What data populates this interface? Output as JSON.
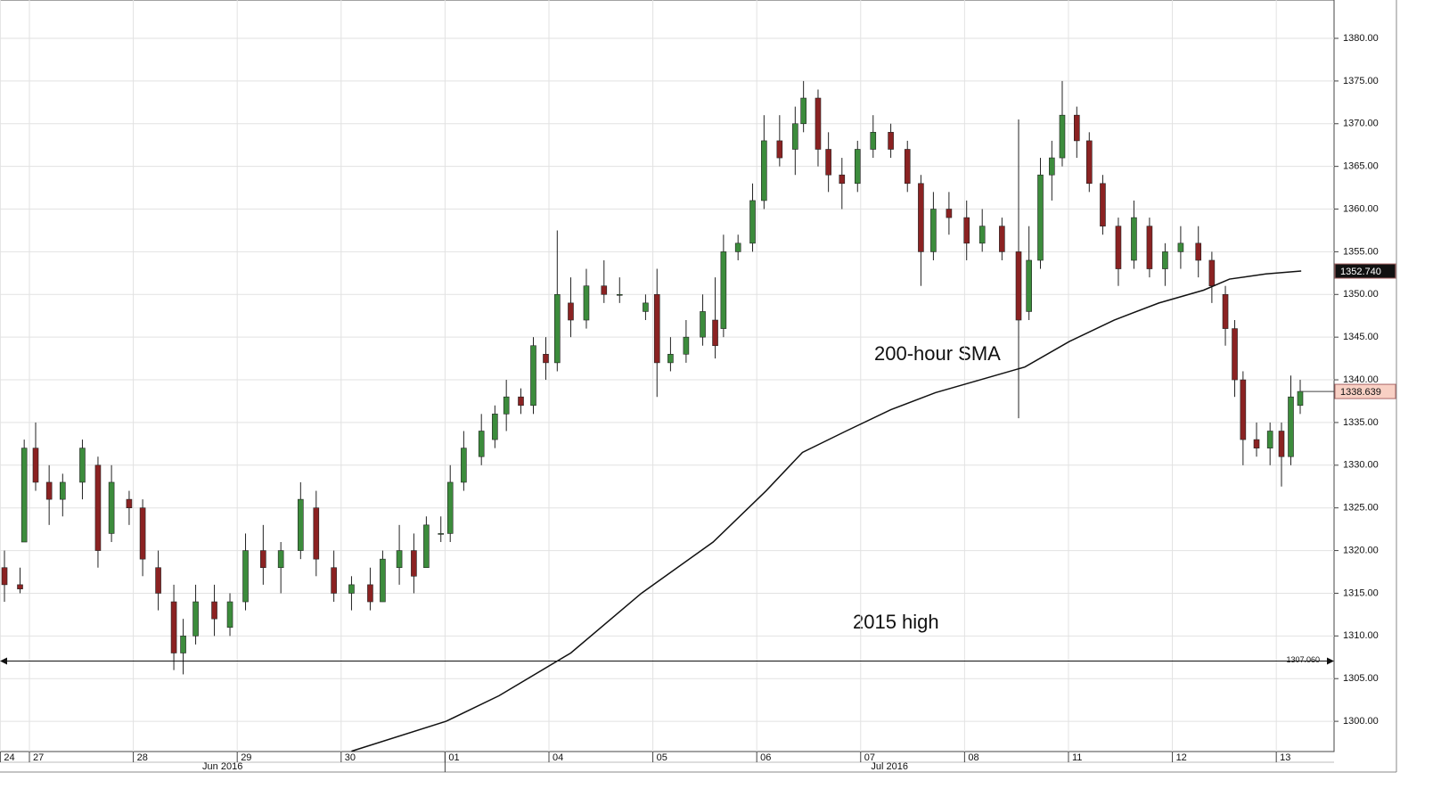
{
  "chart_data": {
    "type": "candlestick",
    "xlim": [
      -0.283,
      12.556
    ],
    "ylim": [
      1296.46,
      1384.49
    ],
    "grid": true,
    "xticks": [
      {
        "value": -0.28,
        "label": "24"
      },
      {
        "value": 0,
        "label": "27"
      },
      {
        "value": 1,
        "label": "28"
      },
      {
        "value": 2,
        "label": "29"
      },
      {
        "value": 3,
        "label": "30"
      },
      {
        "value": 4,
        "label": "01"
      },
      {
        "value": 5,
        "label": "04"
      },
      {
        "value": 6,
        "label": "05"
      },
      {
        "value": 7,
        "label": "06"
      },
      {
        "value": 8,
        "label": "07"
      },
      {
        "value": 9,
        "label": "08"
      },
      {
        "value": 10,
        "label": "11"
      },
      {
        "value": 11,
        "label": "12"
      },
      {
        "value": 12,
        "label": "13"
      }
    ],
    "months": [
      "Jun 2016",
      "Jul 2016"
    ],
    "yticks": [
      {
        "value": 1300,
        "label": "1300.00"
      },
      {
        "value": 1305,
        "label": "1305.00"
      },
      {
        "value": 1310,
        "label": "1310.00"
      },
      {
        "value": 1315,
        "label": "1315.00"
      },
      {
        "value": 1320,
        "label": "1320.00"
      },
      {
        "value": 1325,
        "label": "1325.00"
      },
      {
        "value": 1330,
        "label": "1330.00"
      },
      {
        "value": 1335,
        "label": "1335.00"
      },
      {
        "value": 1340,
        "label": "1340.00"
      },
      {
        "value": 1345,
        "label": "1345.00"
      },
      {
        "value": 1350,
        "label": "1350.00"
      },
      {
        "value": 1355,
        "label": "1355.00"
      },
      {
        "value": 1360,
        "label": "1360.00"
      },
      {
        "value": 1365,
        "label": "1365.00"
      },
      {
        "value": 1370,
        "label": "1370.00"
      },
      {
        "value": 1375,
        "label": "1375.00"
      },
      {
        "value": 1380,
        "label": "1380.00"
      }
    ],
    "up_color": "#3c8c3c",
    "down_color": "#8b2222",
    "candles": {
      "x": [
        -0.24,
        -0.09,
        -0.05,
        0.06,
        0.19,
        0.32,
        0.51,
        0.66,
        0.79,
        0.96,
        1.09,
        1.24,
        1.39,
        1.48,
        1.6,
        1.78,
        1.93,
        2.08,
        2.25,
        2.42,
        2.61,
        2.76,
        2.93,
        3.1,
        3.28,
        3.4,
        3.56,
        3.7,
        3.82,
        3.96,
        4.05,
        4.18,
        4.35,
        4.48,
        4.59,
        4.73,
        4.85,
        4.97,
        5.08,
        5.21,
        5.36,
        5.53,
        5.68,
        5.93,
        6.04,
        6.17,
        6.32,
        6.48,
        6.6,
        6.68,
        6.82,
        6.96,
        7.07,
        7.22,
        7.37,
        7.45,
        7.59,
        7.69,
        7.82,
        7.97,
        8.12,
        8.29,
        8.45,
        8.58,
        8.7,
        8.85,
        9.02,
        9.17,
        9.36,
        9.52,
        9.62,
        9.73,
        9.84,
        9.94,
        10.08,
        10.2,
        10.33,
        10.48,
        10.63,
        10.78,
        10.93,
        11.08,
        11.25,
        11.38,
        11.51,
        11.6,
        11.68,
        11.81,
        11.94,
        12.05,
        12.14,
        12.23
      ],
      "open": [
        1318,
        1316,
        1321,
        1332,
        1328,
        1326,
        1328,
        1330,
        1322,
        1326,
        1325,
        1318,
        1314,
        1308,
        1310,
        1314,
        1311,
        1314,
        1320,
        1318,
        1320,
        1325,
        1318,
        1315,
        1316,
        1314,
        1318,
        1320,
        1318,
        1322,
        1322,
        1328,
        1331,
        1333,
        1336,
        1338,
        1337,
        1343,
        1342,
        1349,
        1347,
        1351,
        1350,
        1348,
        1350,
        1342,
        1343,
        1345,
        1347,
        1346,
        1355,
        1356,
        1361,
        1368,
        1367,
        1370,
        1373,
        1367,
        1364,
        1363,
        1367,
        1369,
        1367,
        1363,
        1355,
        1360,
        1359,
        1356,
        1358,
        1355,
        1348,
        1354,
        1364,
        1366,
        1371,
        1368,
        1363,
        1358,
        1354,
        1358,
        1353,
        1355,
        1356,
        1354,
        1350,
        1346,
        1340,
        1333,
        1332,
        1334,
        1331,
        1337
      ],
      "high": [
        1320,
        1318,
        1333,
        1335,
        1330,
        1329,
        1333,
        1331,
        1330,
        1327,
        1326,
        1320,
        1316,
        1312,
        1316,
        1316,
        1315,
        1322,
        1323,
        1321,
        1328,
        1327,
        1320,
        1317,
        1318,
        1320,
        1323,
        1322,
        1324,
        1324,
        1330,
        1334,
        1336,
        1337,
        1340,
        1339,
        1345,
        1345,
        1357.5,
        1352,
        1353,
        1354,
        1352,
        1350,
        1353,
        1345,
        1347,
        1350,
        1352,
        1357,
        1357,
        1363,
        1371,
        1371,
        1372,
        1375,
        1374,
        1369,
        1366,
        1368,
        1371,
        1370,
        1368,
        1364,
        1362,
        1362,
        1361,
        1360,
        1359,
        1370.5,
        1358,
        1366,
        1368,
        1375,
        1372,
        1369,
        1364,
        1359,
        1361,
        1359,
        1356,
        1358,
        1358,
        1355,
        1351,
        1347,
        1341,
        1335,
        1335,
        1335,
        1340.5,
        1340
      ],
      "low": [
        1314,
        1315,
        1321,
        1327,
        1323,
        1324,
        1326,
        1318,
        1321,
        1323,
        1317,
        1313,
        1306,
        1305.5,
        1309,
        1310,
        1310,
        1313,
        1316,
        1315,
        1319,
        1317,
        1314,
        1313,
        1313,
        1314,
        1316,
        1315,
        1318,
        1321,
        1321,
        1327,
        1330,
        1332,
        1334,
        1336,
        1336,
        1340,
        1341,
        1345,
        1346,
        1349,
        1349,
        1347,
        1338,
        1341,
        1342,
        1344,
        1342.5,
        1345,
        1354,
        1355,
        1360,
        1365,
        1364,
        1369,
        1365,
        1362,
        1360,
        1362,
        1366,
        1366,
        1362,
        1351,
        1354,
        1357,
        1354,
        1355,
        1354,
        1335.5,
        1347,
        1353,
        1361,
        1365,
        1366,
        1362,
        1357,
        1351,
        1353,
        1352,
        1351,
        1353,
        1352,
        1349,
        1344,
        1338,
        1330,
        1331,
        1330,
        1327.5,
        1330,
        1336
      ],
      "close": [
        1316,
        1315.5,
        1332,
        1328,
        1326,
        1328,
        1332,
        1320,
        1328,
        1325,
        1319,
        1315,
        1308,
        1310,
        1314,
        1312,
        1314,
        1320,
        1318,
        1320,
        1326,
        1319,
        1315,
        1316,
        1314,
        1319,
        1320,
        1317,
        1323,
        1322,
        1328,
        1332,
        1334,
        1336,
        1338,
        1337,
        1344,
        1342,
        1350,
        1347,
        1351,
        1350,
        1350,
        1349,
        1342,
        1343,
        1345,
        1348,
        1344,
        1355,
        1356,
        1361,
        1368,
        1366,
        1370,
        1373,
        1367,
        1364,
        1363,
        1367,
        1369,
        1367,
        1363,
        1355,
        1360,
        1359,
        1356,
        1358,
        1355,
        1347,
        1354,
        1364,
        1366,
        1371,
        1368,
        1363,
        1358,
        1353,
        1359,
        1353,
        1355,
        1356,
        1354,
        1351,
        1346,
        1340,
        1333,
        1332,
        1334,
        1331,
        1338,
        1338.639
      ]
    },
    "sma": {
      "x": [
        3.1,
        4.01,
        4.52,
        5.21,
        5.89,
        6.58,
        7.09,
        7.44,
        7.86,
        8.29,
        8.72,
        9.15,
        9.58,
        10.01,
        10.44,
        10.87,
        11.3,
        11.55,
        11.9,
        12.24
      ],
      "values": [
        1296.5,
        1300,
        1303,
        1308,
        1315,
        1321,
        1327,
        1331.5,
        1334,
        1336.5,
        1338.5,
        1340,
        1341.5,
        1344.5,
        1347,
        1349,
        1350.5,
        1351.8,
        1352.4,
        1352.74
      ]
    },
    "sma_tag": {
      "value": 1352.74,
      "label": "1352.740"
    },
    "price_tag": {
      "value": 1338.639,
      "label": "1338.639"
    },
    "level": {
      "value": 1307.06,
      "label": "1307.060"
    },
    "annotations": [
      "200-hour SMA",
      "2015 high"
    ]
  }
}
